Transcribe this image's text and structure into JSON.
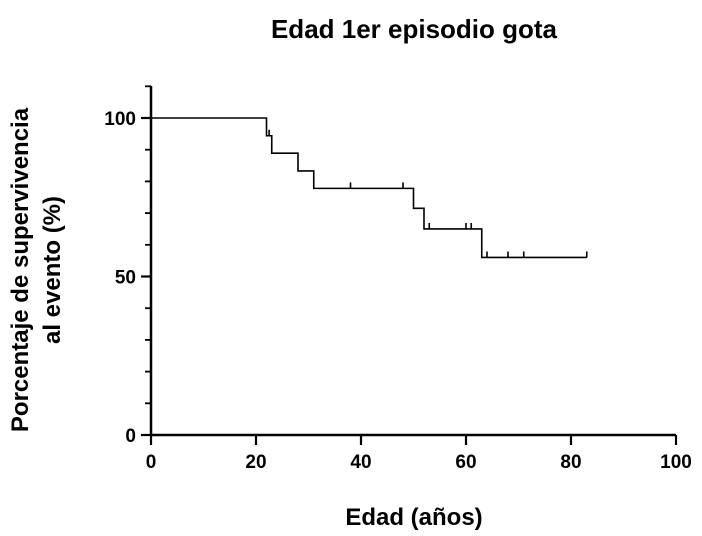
{
  "chart_data": {
    "type": "line",
    "subtype": "kaplan-meier survival curve",
    "title": "Edad 1er episodio gota",
    "xlabel": "Edad (años)",
    "ylabel_line1": "Porcentaje de supervivencia",
    "ylabel_line2": "al evento (%)",
    "xlim": [
      0,
      100
    ],
    "ylim": [
      0,
      100
    ],
    "x_ticks": [
      0,
      20,
      40,
      60,
      80,
      100
    ],
    "y_ticks": [
      0,
      50,
      100
    ],
    "grid": false,
    "legend": "none",
    "series": [
      {
        "steps": [
          {
            "x": 0,
            "y": 100
          },
          {
            "x": 22,
            "y": 94.4
          },
          {
            "x": 23,
            "y": 88.9
          },
          {
            "x": 28,
            "y": 83.3
          },
          {
            "x": 31,
            "y": 77.8
          },
          {
            "x": 50,
            "y": 71.5
          },
          {
            "x": 52,
            "y": 65.0
          },
          {
            "x": 63,
            "y": 56.0
          }
        ],
        "end_x": 83,
        "censored": [
          {
            "x": 22.5,
            "y": 94.4
          },
          {
            "x": 38,
            "y": 77.8
          },
          {
            "x": 48,
            "y": 77.8
          },
          {
            "x": 53,
            "y": 65.0
          },
          {
            "x": 60,
            "y": 65.0
          },
          {
            "x": 61,
            "y": 65.0
          },
          {
            "x": 64,
            "y": 56.0
          },
          {
            "x": 68,
            "y": 56.0
          },
          {
            "x": 71,
            "y": 56.0
          },
          {
            "x": 83,
            "y": 56.0
          }
        ]
      }
    ]
  }
}
